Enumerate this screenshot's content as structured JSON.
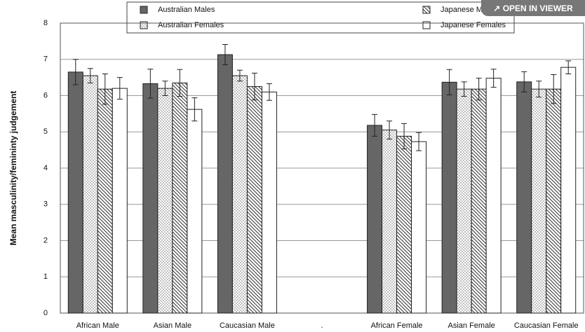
{
  "chart_data": {
    "type": "bar",
    "y_label": "Mean masculinity/femininty judgement",
    "categories": [
      "African Male",
      "Asian Male",
      "Caucasian Male",
      ".",
      "African Female",
      "Asian Female",
      "Caucasian Female"
    ],
    "series": [
      {
        "name": "Australian Males",
        "color": "#666666",
        "pattern": "solid",
        "values": [
          6.65,
          6.33,
          7.13,
          null,
          5.18,
          6.37,
          6.38
        ],
        "errors": [
          0.35,
          0.4,
          0.28,
          null,
          0.3,
          0.35,
          0.28
        ]
      },
      {
        "name": "Australian Females",
        "color": "#888888",
        "pattern": "dots",
        "values": [
          6.55,
          6.2,
          6.55,
          null,
          5.05,
          6.18,
          6.18
        ],
        "errors": [
          0.2,
          0.2,
          0.15,
          null,
          0.25,
          0.2,
          0.22
        ]
      },
      {
        "name": "Japanese Males",
        "color": "#333333",
        "pattern": "hatch",
        "values": [
          6.18,
          6.35,
          6.25,
          null,
          4.88,
          6.18,
          6.18
        ],
        "errors": [
          0.42,
          0.37,
          0.37,
          null,
          0.35,
          0.3,
          0.4
        ]
      },
      {
        "name": "Japanese Females",
        "color": "#ffffff",
        "pattern": "none",
        "values": [
          6.2,
          5.62,
          6.1,
          null,
          4.73,
          6.48,
          6.78
        ],
        "errors": [
          0.3,
          0.32,
          0.23,
          null,
          0.25,
          0.25,
          0.18
        ]
      }
    ],
    "ylim": [
      0,
      8
    ],
    "yticks": [
      0,
      1,
      2,
      3,
      4,
      5,
      6,
      7,
      8
    ],
    "grid": true
  },
  "ui": {
    "button": "OPEN IN VIEWER"
  }
}
